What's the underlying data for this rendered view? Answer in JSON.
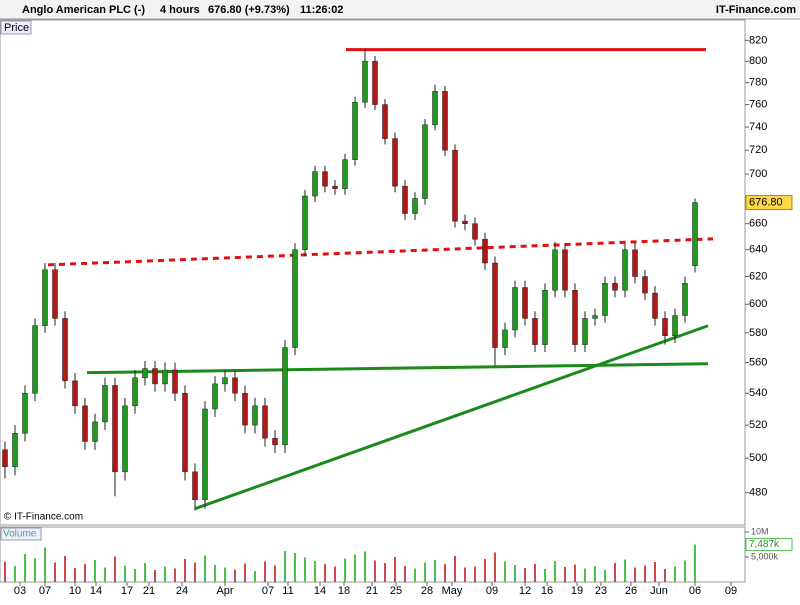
{
  "header": {
    "title": "Anglo American PLC (-)",
    "interval": "4 hours",
    "price": "676.80 (+9.73%)",
    "time": "11:26:02",
    "brand": "IT-Finance.com"
  },
  "chart_data": {
    "type": "candlestick",
    "panel_label": "Price",
    "copyright": "© IT-Finance.com",
    "log_scale": true,
    "xlim": [
      -0.5,
      74
    ],
    "xticks": [
      {
        "value": 1.5,
        "label": "03"
      },
      {
        "value": 4,
        "label": "07"
      },
      {
        "value": 7,
        "label": "10"
      },
      {
        "value": 9.1,
        "label": "14"
      },
      {
        "value": 12.2,
        "label": "17"
      },
      {
        "value": 14.4,
        "label": "21"
      },
      {
        "value": 17.7,
        "label": "24"
      },
      {
        "value": 22,
        "label": "Apr"
      },
      {
        "value": 26.3,
        "label": "07"
      },
      {
        "value": 28.3,
        "label": "11"
      },
      {
        "value": 31.5,
        "label": "14"
      },
      {
        "value": 33.9,
        "label": "18"
      },
      {
        "value": 36.7,
        "label": "21"
      },
      {
        "value": 39.1,
        "label": "25"
      },
      {
        "value": 42.2,
        "label": "28"
      },
      {
        "value": 44.7,
        "label": "May"
      },
      {
        "value": 48.7,
        "label": "09"
      },
      {
        "value": 52,
        "label": "12"
      },
      {
        "value": 54.2,
        "label": "16"
      },
      {
        "value": 57.2,
        "label": "19"
      },
      {
        "value": 59.6,
        "label": "23"
      },
      {
        "value": 62.6,
        "label": "26"
      },
      {
        "value": 65.4,
        "label": "Jun"
      },
      {
        "value": 69,
        "label": "06"
      },
      {
        "value": 72.6,
        "label": "09"
      }
    ],
    "ylim": [
      462,
      840
    ],
    "yticks": [
      480,
      500,
      520,
      540,
      560,
      580,
      600,
      620,
      640,
      660,
      700,
      720,
      740,
      760,
      780,
      800,
      820
    ],
    "up_color": "#1f9a1f",
    "down_color": "#b01818",
    "open": [
      505,
      495,
      515,
      540,
      585,
      625,
      590,
      548,
      532,
      510,
      522,
      545,
      492,
      532,
      550,
      556,
      546,
      555,
      540,
      492,
      476,
      530,
      546,
      550,
      540,
      520,
      532,
      512,
      508,
      570,
      640,
      682,
      702,
      690,
      688,
      712,
      762,
      800,
      760,
      730,
      690,
      668,
      680,
      742,
      772,
      720,
      662,
      660,
      648,
      630,
      570,
      582,
      612,
      590,
      572,
      610,
      640,
      610,
      572,
      590,
      592,
      615,
      610,
      640,
      620,
      608,
      590,
      578,
      592,
      628
    ],
    "high": [
      510,
      520,
      545,
      590,
      630,
      630,
      595,
      553,
      537,
      527,
      550,
      550,
      537,
      555,
      561,
      561,
      560,
      560,
      545,
      497,
      535,
      551,
      555,
      555,
      545,
      537,
      537,
      517,
      575,
      645,
      687,
      707,
      707,
      695,
      717,
      767,
      812,
      805,
      765,
      735,
      695,
      685,
      747,
      778,
      777,
      725,
      667,
      665,
      653,
      635,
      587,
      617,
      617,
      595,
      615,
      646,
      645,
      615,
      595,
      597,
      620,
      620,
      645,
      645,
      625,
      613,
      595,
      597,
      620,
      680
    ],
    "low": [
      488,
      490,
      510,
      535,
      580,
      585,
      543,
      527,
      505,
      505,
      517,
      478,
      487,
      527,
      545,
      541,
      541,
      535,
      487,
      470,
      471,
      525,
      541,
      535,
      515,
      515,
      507,
      503,
      503,
      565,
      635,
      677,
      685,
      683,
      683,
      707,
      757,
      755,
      725,
      685,
      663,
      663,
      675,
      737,
      715,
      657,
      655,
      643,
      625,
      558,
      565,
      577,
      585,
      567,
      567,
      605,
      605,
      567,
      567,
      585,
      587,
      605,
      605,
      615,
      603,
      585,
      572,
      573,
      587,
      623
    ],
    "close": [
      495,
      515,
      540,
      585,
      625,
      590,
      548,
      532,
      510,
      522,
      545,
      492,
      532,
      550,
      556,
      546,
      555,
      540,
      492,
      476,
      530,
      546,
      550,
      540,
      520,
      532,
      512,
      508,
      570,
      640,
      682,
      702,
      690,
      688,
      712,
      762,
      800,
      760,
      730,
      690,
      668,
      680,
      742,
      772,
      720,
      662,
      660,
      648,
      630,
      570,
      582,
      612,
      590,
      572,
      610,
      640,
      610,
      572,
      590,
      592,
      615,
      610,
      640,
      620,
      608,
      590,
      578,
      592,
      615,
      676.8
    ],
    "last_price": {
      "value": 676.8,
      "label": "676.80"
    },
    "lines": [
      {
        "x": [
          34.1,
          70.1
        ],
        "y": [
          811,
          811
        ],
        "color": "#e01010",
        "dash": false
      },
      {
        "x": [
          4.3,
          70.8
        ],
        "y": [
          628.6,
          648.3
        ],
        "color": "#e01010",
        "dash": true
      },
      {
        "x": [
          8.2,
          70.3
        ],
        "y": [
          553.3,
          559.2
        ],
        "color": "#1a8a1a",
        "dash": false
      },
      {
        "x": [
          19,
          70.3
        ],
        "y": [
          471,
          584.9
        ],
        "color": "#1a8a1a",
        "dash": false
      }
    ],
    "volume": {
      "label": "Volume",
      "last_label": "7,487k",
      "ylim": [
        0,
        11000000
      ],
      "yticks": [
        {
          "value": 5000000,
          "label": "5,000k"
        },
        {
          "value": 10000000,
          "label": "10M"
        }
      ],
      "values": [
        4100000,
        3200000,
        5600000,
        4800000,
        6900000,
        3900000,
        5200000,
        2800000,
        3600000,
        4400000,
        2900000,
        5100000,
        3300000,
        2600000,
        3800000,
        2400000,
        3100000,
        2700000,
        4600000,
        3900000,
        5300000,
        3400000,
        2900000,
        2500000,
        3700000,
        2200000,
        4100000,
        3300000,
        6200000,
        5800000,
        4900000,
        4200000,
        3600000,
        3100000,
        4700000,
        5500000,
        6100000,
        4300000,
        3800000,
        5000000,
        3200000,
        2700000,
        3900000,
        4400000,
        3600000,
        5200000,
        2900000,
        3100000,
        4600000,
        5900000,
        4100000,
        3400000,
        2800000,
        3600000,
        2600000,
        4200000,
        3000000,
        3500000,
        2700000,
        3200000,
        2400000,
        3800000,
        4500000,
        2900000,
        3300000,
        4000000,
        2600000,
        3100000,
        4300000,
        7487000
      ]
    }
  }
}
